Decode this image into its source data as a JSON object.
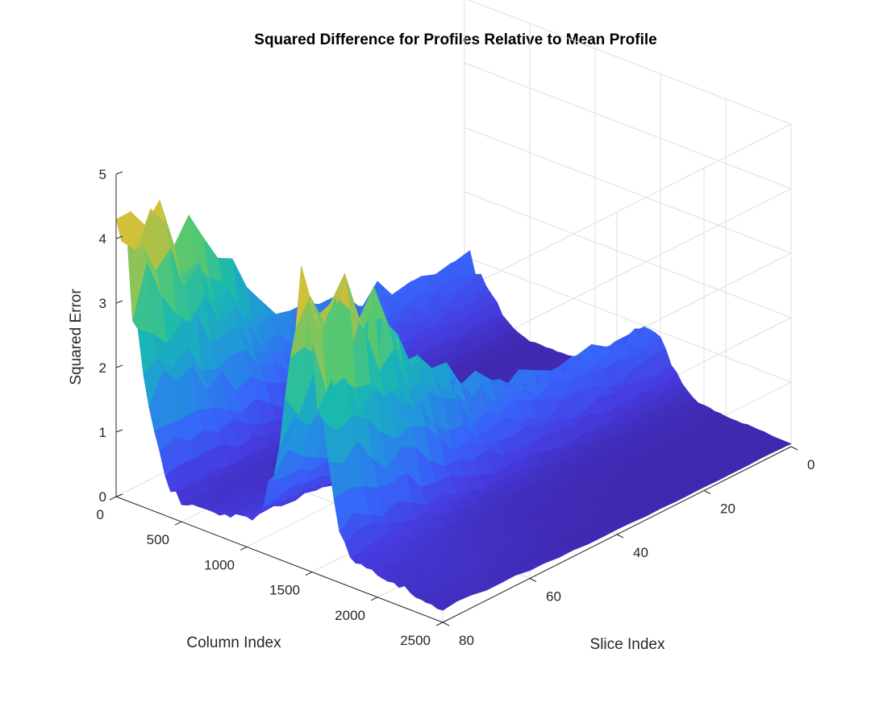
{
  "chart_data": {
    "type": "surface",
    "title": "Squared Difference for Profiles Relative to Mean Profile",
    "xlabel": "Column Index",
    "ylabel": "Slice Index",
    "zlabel": "Squared Error",
    "xlim": [
      0,
      2500
    ],
    "ylim": [
      0,
      80
    ],
    "zlim": [
      0,
      5
    ],
    "x_ticks": [
      "0",
      "500",
      "1000",
      "1500",
      "2000",
      "2500"
    ],
    "y_ticks": [
      "0",
      "20",
      "40",
      "60",
      "80"
    ],
    "z_ticks": [
      "0",
      "1",
      "2",
      "3",
      "4",
      "5"
    ],
    "colormap": "parula",
    "colors": {
      "low": "#3e26a8",
      "mid": "#1fa7c9",
      "high": "#f9c930"
    },
    "grid": true,
    "column_profile_max": {
      "x": [
        0,
        50,
        100,
        200,
        300,
        400,
        500,
        600,
        700,
        800,
        900,
        1000,
        1100,
        1200,
        1300,
        1400,
        1500,
        1600,
        1700,
        1800,
        1900,
        2000,
        2100,
        2200,
        2300,
        2400,
        2500
      ],
      "z": [
        4.4,
        3.9,
        3.5,
        2.4,
        1.3,
        0.5,
        0.3,
        0.3,
        0.3,
        0.35,
        0.4,
        0.45,
        0.6,
        1.3,
        2.6,
        4.5,
        3.2,
        2.0,
        0.9,
        0.5,
        0.4,
        0.35,
        0.3,
        0.3,
        0.25,
        0.2,
        0.2
      ]
    }
  }
}
